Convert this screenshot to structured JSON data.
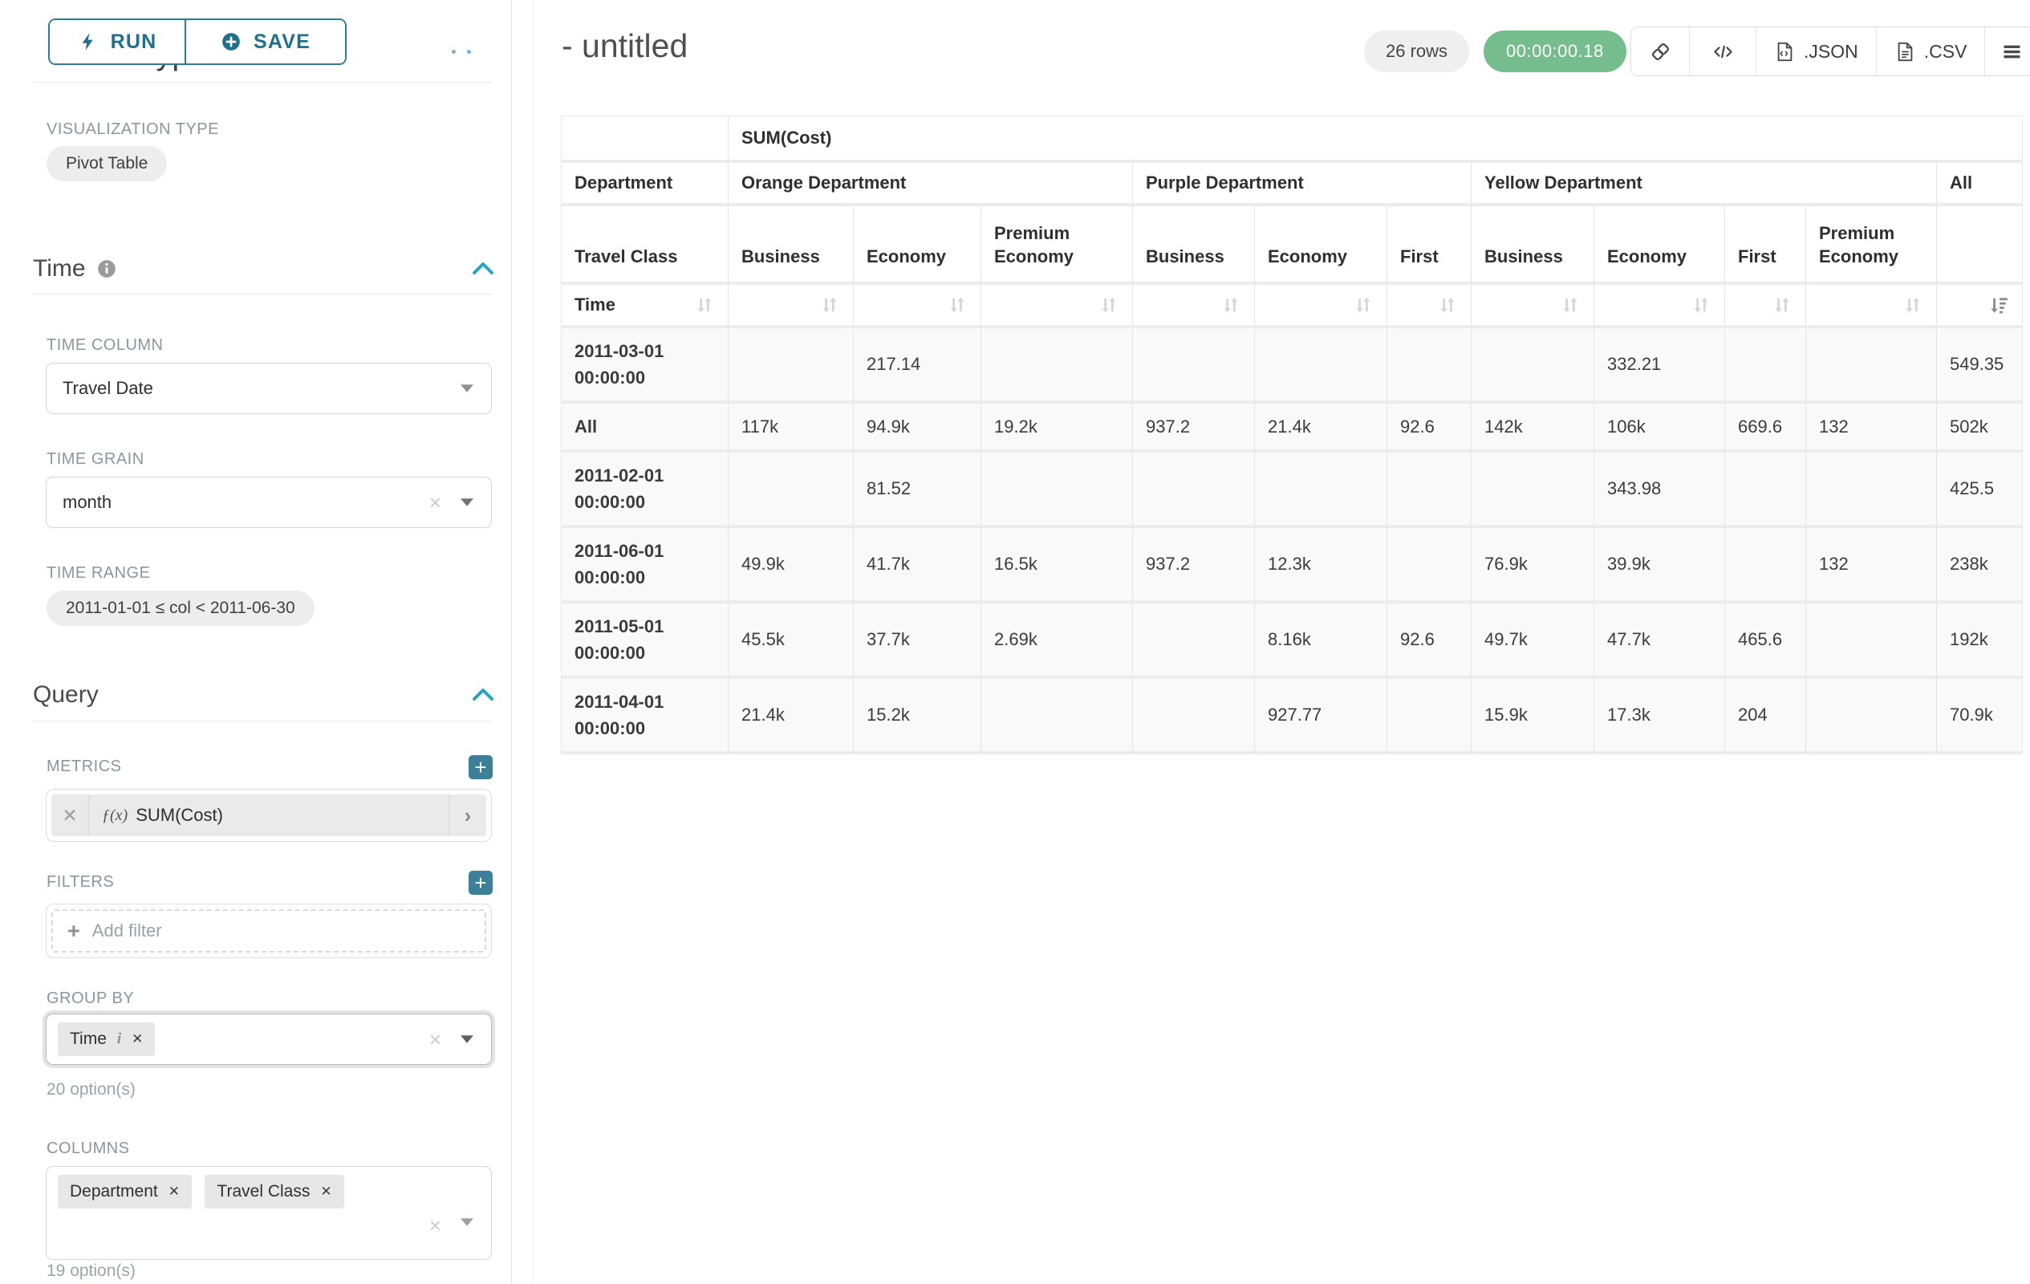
{
  "sidebar": {
    "run_label": "RUN",
    "save_label": "SAVE",
    "chart_type_heading": "Chart Type",
    "viz": {
      "label": "VISUALIZATION TYPE",
      "value": "Pivot Table"
    },
    "time": {
      "heading": "Time",
      "column_label": "TIME COLUMN",
      "column_value": "Travel Date",
      "grain_label": "TIME GRAIN",
      "grain_value": "month",
      "range_label": "TIME RANGE",
      "range_value": "2011-01-01 ≤ col < 2011-06-30"
    },
    "query": {
      "heading": "Query",
      "metrics_label": "METRICS",
      "metric_fx": "ƒ(x)",
      "metric_value": "SUM(Cost)",
      "filters_label": "FILTERS",
      "add_filter_label": "Add filter",
      "group_by_label": "GROUP BY",
      "group_by_chips": [
        "Time"
      ],
      "group_by_hint": "20 option(s)",
      "columns_label": "COLUMNS",
      "columns_chips": [
        "Department",
        "Travel Class"
      ],
      "columns_hint": "19 option(s)"
    }
  },
  "header": {
    "title": "- untitled",
    "row_count": "26 rows",
    "timer": "00:00:00.18",
    "json_label": ".JSON",
    "csv_label": ".CSV"
  },
  "colors": {
    "accent_teal": "#2d7d97",
    "accent_blue": "#27a3c4",
    "timer_green": "#76bd8d",
    "plus_button_teal": "#3b7f98"
  },
  "pivot_table": {
    "metric_header": "SUM(Cost)",
    "department_label": "Department",
    "travel_class_label": "Travel Class",
    "time_label": "Time",
    "groups": [
      {
        "name": "Orange Department",
        "classes": [
          "Business",
          "Economy",
          "Premium Economy"
        ]
      },
      {
        "name": "Purple Department",
        "classes": [
          "Business",
          "Economy",
          "First"
        ]
      },
      {
        "name": "Yellow Department",
        "classes": [
          "Business",
          "Economy",
          "First",
          "Premium Economy"
        ]
      },
      {
        "name": "All",
        "classes": [
          ""
        ]
      }
    ],
    "rows": [
      {
        "time": "2011-03-01 00:00:00",
        "values": [
          "",
          "217.14",
          "",
          "",
          "",
          "",
          "",
          "332.21",
          "",
          "",
          "549.35"
        ]
      },
      {
        "time": "All",
        "values": [
          "117k",
          "94.9k",
          "19.2k",
          "937.2",
          "21.4k",
          "92.6",
          "142k",
          "106k",
          "669.6",
          "132",
          "502k"
        ]
      },
      {
        "time": "2011-02-01 00:00:00",
        "values": [
          "",
          "81.52",
          "",
          "",
          "",
          "",
          "",
          "343.98",
          "",
          "",
          "425.5"
        ]
      },
      {
        "time": "2011-06-01 00:00:00",
        "values": [
          "49.9k",
          "41.7k",
          "16.5k",
          "937.2",
          "12.3k",
          "",
          "76.9k",
          "39.9k",
          "",
          "132",
          "238k"
        ]
      },
      {
        "time": "2011-05-01 00:00:00",
        "values": [
          "45.5k",
          "37.7k",
          "2.69k",
          "",
          "8.16k",
          "92.6",
          "49.7k",
          "47.7k",
          "465.6",
          "",
          "192k"
        ]
      },
      {
        "time": "2011-04-01 00:00:00",
        "values": [
          "21.4k",
          "15.2k",
          "",
          "",
          "927.77",
          "",
          "15.9k",
          "17.3k",
          "204",
          "",
          "70.9k"
        ]
      }
    ]
  }
}
